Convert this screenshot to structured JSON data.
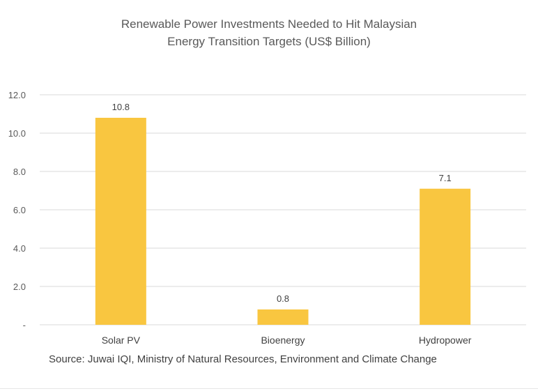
{
  "chart_data": {
    "type": "bar",
    "title_lines": [
      "Renewable Power Investments Needed to Hit Malaysian",
      "Energy Transition Targets (US$ Billion)"
    ],
    "categories": [
      "Solar PV",
      "Bioenergy",
      "Hydropower"
    ],
    "values": [
      10.8,
      0.8,
      7.1
    ],
    "data_labels": [
      "10.8",
      "0.8",
      "7.1"
    ],
    "y_ticks": [
      0,
      2,
      4,
      6,
      8,
      10,
      12
    ],
    "y_tick_labels": [
      "-",
      "2.0",
      "4.0",
      "6.0",
      "8.0",
      "10.0",
      "12.0"
    ],
    "ylim": [
      0,
      12
    ],
    "grid": true,
    "bar_color": "#F9C640",
    "grid_color": "#D9D9D9"
  },
  "source": "Source: Juwai IQI, Ministry of Natural Resources, Environment and Climate Change"
}
